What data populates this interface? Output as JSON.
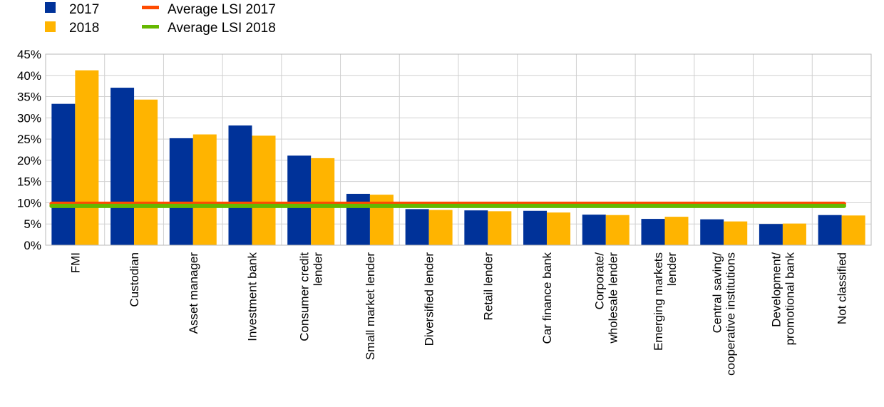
{
  "chart_data": {
    "type": "bar",
    "categories": [
      [
        "FMI"
      ],
      [
        "Custodian"
      ],
      [
        "Asset manager"
      ],
      [
        "Investment bank"
      ],
      [
        "Consumer credit",
        "lender"
      ],
      [
        "Small market lender"
      ],
      [
        "Diversified lender"
      ],
      [
        "Retail lender"
      ],
      [
        "Car finance bank"
      ],
      [
        "Corporate/",
        "wholesale lender"
      ],
      [
        "Emerging markets",
        "lender"
      ],
      [
        "Central saving/",
        "cooperative institutions"
      ],
      [
        "Development/",
        "promotional bank"
      ],
      [
        "Not classified"
      ]
    ],
    "series": [
      {
        "name": "2017",
        "color": "#003299",
        "values": [
          33.3,
          37.1,
          25.2,
          28.2,
          21.1,
          12.1,
          8.5,
          8.2,
          8.1,
          7.2,
          6.2,
          6.1,
          5.0,
          7.1
        ]
      },
      {
        "name": "2018",
        "color": "#FFB400",
        "values": [
          41.2,
          34.3,
          26.1,
          25.8,
          20.5,
          11.9,
          8.3,
          8.0,
          7.7,
          7.1,
          6.7,
          5.6,
          5.1,
          7.0
        ]
      }
    ],
    "lines": [
      {
        "name": "Average LSI 2017",
        "color": "#FF4B00",
        "value": 9.5
      },
      {
        "name": "Average LSI 2018",
        "color": "#65B800",
        "value": 9.5
      }
    ],
    "ylim": [
      0,
      45
    ],
    "yticks": [
      "0%",
      "5%",
      "10%",
      "15%",
      "20%",
      "25%",
      "30%",
      "35%",
      "40%",
      "45%"
    ],
    "grid": true,
    "legend": "top-left"
  }
}
